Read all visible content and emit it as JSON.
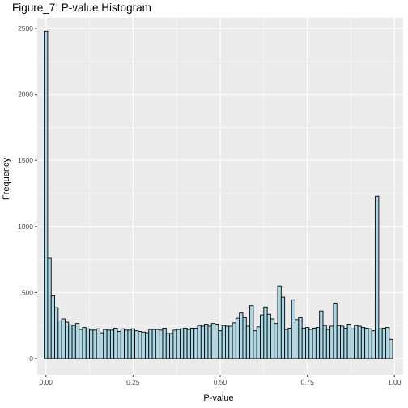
{
  "chart_data": {
    "type": "bar",
    "title": "Figure_7: P-value Histogram",
    "xlabel": "P-value",
    "ylabel": "Frequency",
    "xlim": [
      -0.025,
      1.025
    ],
    "ylim": [
      -123,
      2580
    ],
    "xticks": [
      0.0,
      0.25,
      0.5,
      0.75,
      1.0
    ],
    "xtick_labels": [
      "0.00",
      "0.25",
      "0.50",
      "0.75",
      "1.00"
    ],
    "yticks": [
      0,
      500,
      1000,
      1500,
      2000,
      2500
    ],
    "ytick_labels": [
      "0",
      "500",
      "1000",
      "1500",
      "2000",
      "2500"
    ],
    "grid": true,
    "fill_color": "#ADD8E6",
    "edge_color": "#000000",
    "panel_color": "#EBEBEB",
    "bin_width": 0.01,
    "bin_centers_start": 0.0,
    "counts": [
      2480,
      760,
      475,
      385,
      285,
      300,
      275,
      255,
      250,
      265,
      220,
      235,
      225,
      215,
      215,
      225,
      195,
      220,
      215,
      215,
      230,
      205,
      225,
      215,
      215,
      225,
      210,
      205,
      200,
      195,
      220,
      220,
      220,
      215,
      230,
      190,
      190,
      215,
      220,
      225,
      230,
      220,
      230,
      230,
      250,
      245,
      260,
      245,
      265,
      260,
      210,
      250,
      245,
      245,
      270,
      305,
      345,
      310,
      245,
      400,
      210,
      240,
      330,
      390,
      335,
      300,
      265,
      550,
      465,
      220,
      230,
      445,
      295,
      310,
      230,
      235,
      220,
      230,
      235,
      360,
      250,
      220,
      245,
      420,
      250,
      245,
      230,
      260,
      225,
      250,
      245,
      235,
      230,
      225,
      210,
      1230,
      225,
      230,
      235,
      145
    ]
  }
}
